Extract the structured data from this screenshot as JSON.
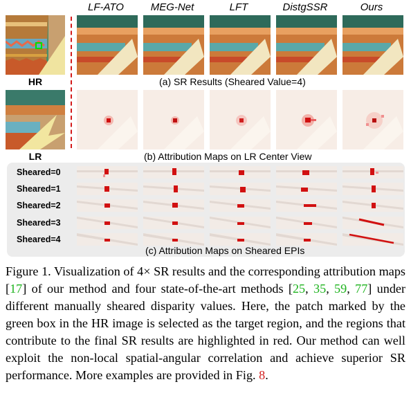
{
  "methods": [
    "LF-ATO",
    "MEG-Net",
    "LFT",
    "DistgSSR",
    "Ours"
  ],
  "row_labels": {
    "hr": "HR",
    "lr": "LR"
  },
  "subcaptions": {
    "a": "(a) SR Results (Sheared Value=4)",
    "b": "(b) Attribution Maps on LR Center View",
    "c": "(c) Attribution Maps on Sheared EPIs"
  },
  "sheared_labels": [
    "Sheared=0",
    "Sheared=1",
    "Sheared=2",
    "Sheared=3",
    "Sheared=4"
  ],
  "caption": {
    "prefix": "Figure 1. Visualization of 4× SR results and the corresponding attribution maps [",
    "ref17": "17",
    "part2": "] of our method and four state-of-the-art methods [",
    "ref25": "25",
    "sep1": ", ",
    "ref35": "35",
    "sep2": ", ",
    "ref59": "59",
    "sep3": ", ",
    "ref77": "77",
    "part3": "] under different manually sheared disparity values. Here, the patch marked by the green box in the HR image is selected as the target region, and the regions that contribute to the final SR results are highlighted in red. Our method can well exploit the non-local spatial-angular correlation and achieve superior SR performance. More examples are provided in Fig. ",
    "ref8": "8",
    "end": "."
  },
  "colors": {
    "highlight_red": "#d11010",
    "target_box": "#00e000",
    "ref_green": "#1db31d",
    "ref_red": "#d21f1f"
  }
}
